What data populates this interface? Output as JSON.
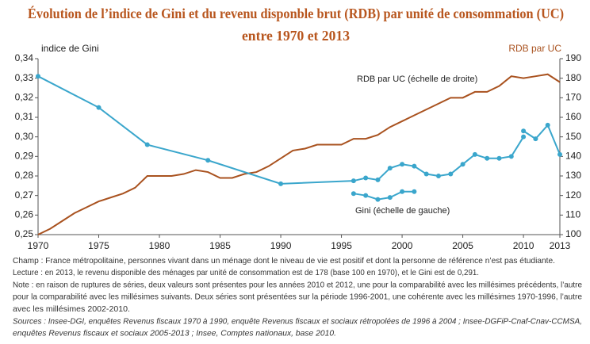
{
  "chart_data": {
    "type": "line",
    "title": [
      "Évolution de l’indice de Gini et du revenu disponble brut (RDB) par unité de consommation (UC)",
      "entre 1970 et 2013"
    ],
    "ylabel": "indice de Gini",
    "y2label": "RDB par UC",
    "xlim": [
      1970,
      2013
    ],
    "xticks": [
      1970,
      1975,
      1980,
      1985,
      1990,
      1995,
      2000,
      2005,
      2010,
      2013
    ],
    "ylim": [
      0.25,
      0.34
    ],
    "yticks": [
      {
        "value": 0.25,
        "label": "0,25"
      },
      {
        "value": 0.26,
        "label": "0,26"
      },
      {
        "value": 0.27,
        "label": "0,27"
      },
      {
        "value": 0.28,
        "label": "0,28"
      },
      {
        "value": 0.29,
        "label": "0,29"
      },
      {
        "value": 0.3,
        "label": "0,30"
      },
      {
        "value": 0.31,
        "label": "0,31"
      },
      {
        "value": 0.32,
        "label": "0,32"
      },
      {
        "value": 0.33,
        "label": "0,33"
      },
      {
        "value": 0.34,
        "label": "0,34"
      }
    ],
    "y2lim": [
      100,
      190
    ],
    "y2ticks": [
      100,
      110,
      120,
      130,
      140,
      150,
      160,
      170,
      180,
      190
    ],
    "series": [
      {
        "name": "RDB par UC (échelle de droite)",
        "color": "#a9521f",
        "axis": "y2",
        "x": [
          1970,
          1971,
          1972,
          1973,
          1974,
          1975,
          1976,
          1977,
          1978,
          1979,
          1980,
          1981,
          1982,
          1983,
          1984,
          1985,
          1986,
          1987,
          1988,
          1989,
          1990,
          1991,
          1992,
          1993,
          1994,
          1995,
          1996,
          1997,
          1998,
          1999,
          2000,
          2001,
          2002,
          2003,
          2004,
          2005,
          2006,
          2007,
          2008,
          2009,
          2010,
          2011,
          2012,
          2013
        ],
        "values": [
          100,
          103,
          107,
          111,
          114,
          117,
          119,
          121,
          124,
          130,
          130,
          130,
          131,
          133,
          132,
          129,
          129,
          131,
          132,
          135,
          139,
          143,
          144,
          146,
          146,
          146,
          149,
          149,
          151,
          155,
          158,
          161,
          164,
          167,
          170,
          170,
          173,
          173,
          176,
          181,
          180,
          181,
          182,
          178
        ]
      },
      {
        "name": "Gini (échelle de gauche)",
        "color": "#3aa6cc",
        "x": [
          1970,
          1975,
          1979,
          1984,
          1990,
          1996,
          1997,
          1998,
          1999,
          2000,
          2001,
          2002,
          2003,
          2004,
          2005,
          2006,
          2007,
          2008,
          2009,
          2010
        ],
        "values": [
          0.331,
          0.315,
          0.296,
          0.288,
          0.276,
          0.2775,
          0.279,
          0.278,
          0.284,
          0.286,
          0.285,
          0.281,
          0.28,
          0.281,
          0.286,
          0.291,
          0.289,
          0.289,
          0.29,
          0.3
        ]
      },
      {
        "color": "#3aa6cc",
        "x": [
          1996,
          1997,
          1998,
          1999,
          2000,
          2001
        ],
        "values": [
          0.271,
          0.27,
          0.268,
          0.269,
          0.272,
          0.272
        ]
      },
      {
        "color": "#3aa6cc",
        "x": [
          2010,
          2011,
          2012,
          2013
        ],
        "values": [
          0.303,
          0.299,
          0.306,
          0.291
        ]
      }
    ],
    "notes": [
      "Champ : France métropolitaine, personnes vivant dans un ménage dont le niveau de vie est positif et dont la personne de référence n’est pas étudiante.",
      "Lecture : en 2013, le revenu disponible des ménages par unité de consommation est de 178 (base 100 en 1970), et le Gini est de 0,291.",
      "Note : en raison de ruptures de séries, deux valeurs sont présentes pour les années 2010 et 2012, une pour la comparabilité avec les millésimes précédents, l’autre",
      "pour la comparabilité avec les millésimes suivants. Deux séries sont présentées sur la période 1996-2001, une cohérente avec les millésimes 1970-1996, l’autre",
      "avec les millésimes 2002-2010.",
      "Sources : Insee-DGI, enquêtes Revenus fiscaux 1970 à 1990, enquête Revenus fiscaux et sociaux rétropolées de 1996 à 2004 ; Insee-DGFiP-Cnaf-Cnav-CCMSA,",
      "enquêtes Revenus fiscaux et sociaux 2005-2013 ; Insee, Comptes nationaux, base 2010."
    ]
  }
}
